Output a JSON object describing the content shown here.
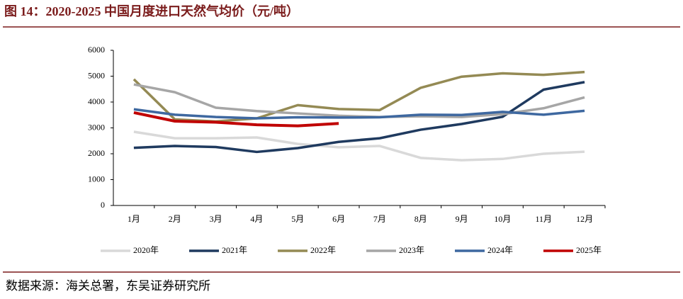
{
  "chart_data": {
    "type": "line",
    "title": "图 14：2020-2025 中国月度进口天然气均价（元/吨）",
    "source": "数据来源：海关总署，东吴证券研究所",
    "categories": [
      "1月",
      "2月",
      "3月",
      "4月",
      "5月",
      "6月",
      "7月",
      "8月",
      "9月",
      "10月",
      "11月",
      "12月"
    ],
    "series": [
      {
        "name": "2020年",
        "color": "#d9d9d9",
        "values": [
          2850,
          2600,
          2600,
          2630,
          2380,
          2250,
          2300,
          1840,
          1750,
          1800,
          2000,
          2080
        ]
      },
      {
        "name": "2021年",
        "color": "#1f3a5f",
        "values": [
          2230,
          2300,
          2260,
          2070,
          2220,
          2460,
          2600,
          2930,
          3150,
          3430,
          4480,
          4770
        ]
      },
      {
        "name": "2022年",
        "color": "#948a54",
        "values": [
          4880,
          3330,
          3250,
          3370,
          3880,
          3730,
          3690,
          4550,
          4980,
          5110,
          5050,
          5160
        ]
      },
      {
        "name": "2023年",
        "color": "#a6a6a6",
        "values": [
          4680,
          4380,
          3780,
          3650,
          3560,
          3470,
          3420,
          3450,
          3420,
          3530,
          3760,
          4180
        ]
      },
      {
        "name": "2024年",
        "color": "#3e68a0",
        "values": [
          3720,
          3510,
          3420,
          3370,
          3410,
          3400,
          3410,
          3510,
          3500,
          3620,
          3510,
          3660
        ]
      },
      {
        "name": "2025年",
        "color": "#c00000",
        "values": [
          3590,
          3260,
          3220,
          3120,
          3080,
          3170,
          null,
          null,
          null,
          null,
          null,
          null
        ]
      }
    ],
    "ylim": [
      0,
      6000
    ],
    "yticks": [
      0,
      1000,
      2000,
      3000,
      4000,
      5000,
      6000
    ],
    "grid": false,
    "legend": "bottom"
  }
}
